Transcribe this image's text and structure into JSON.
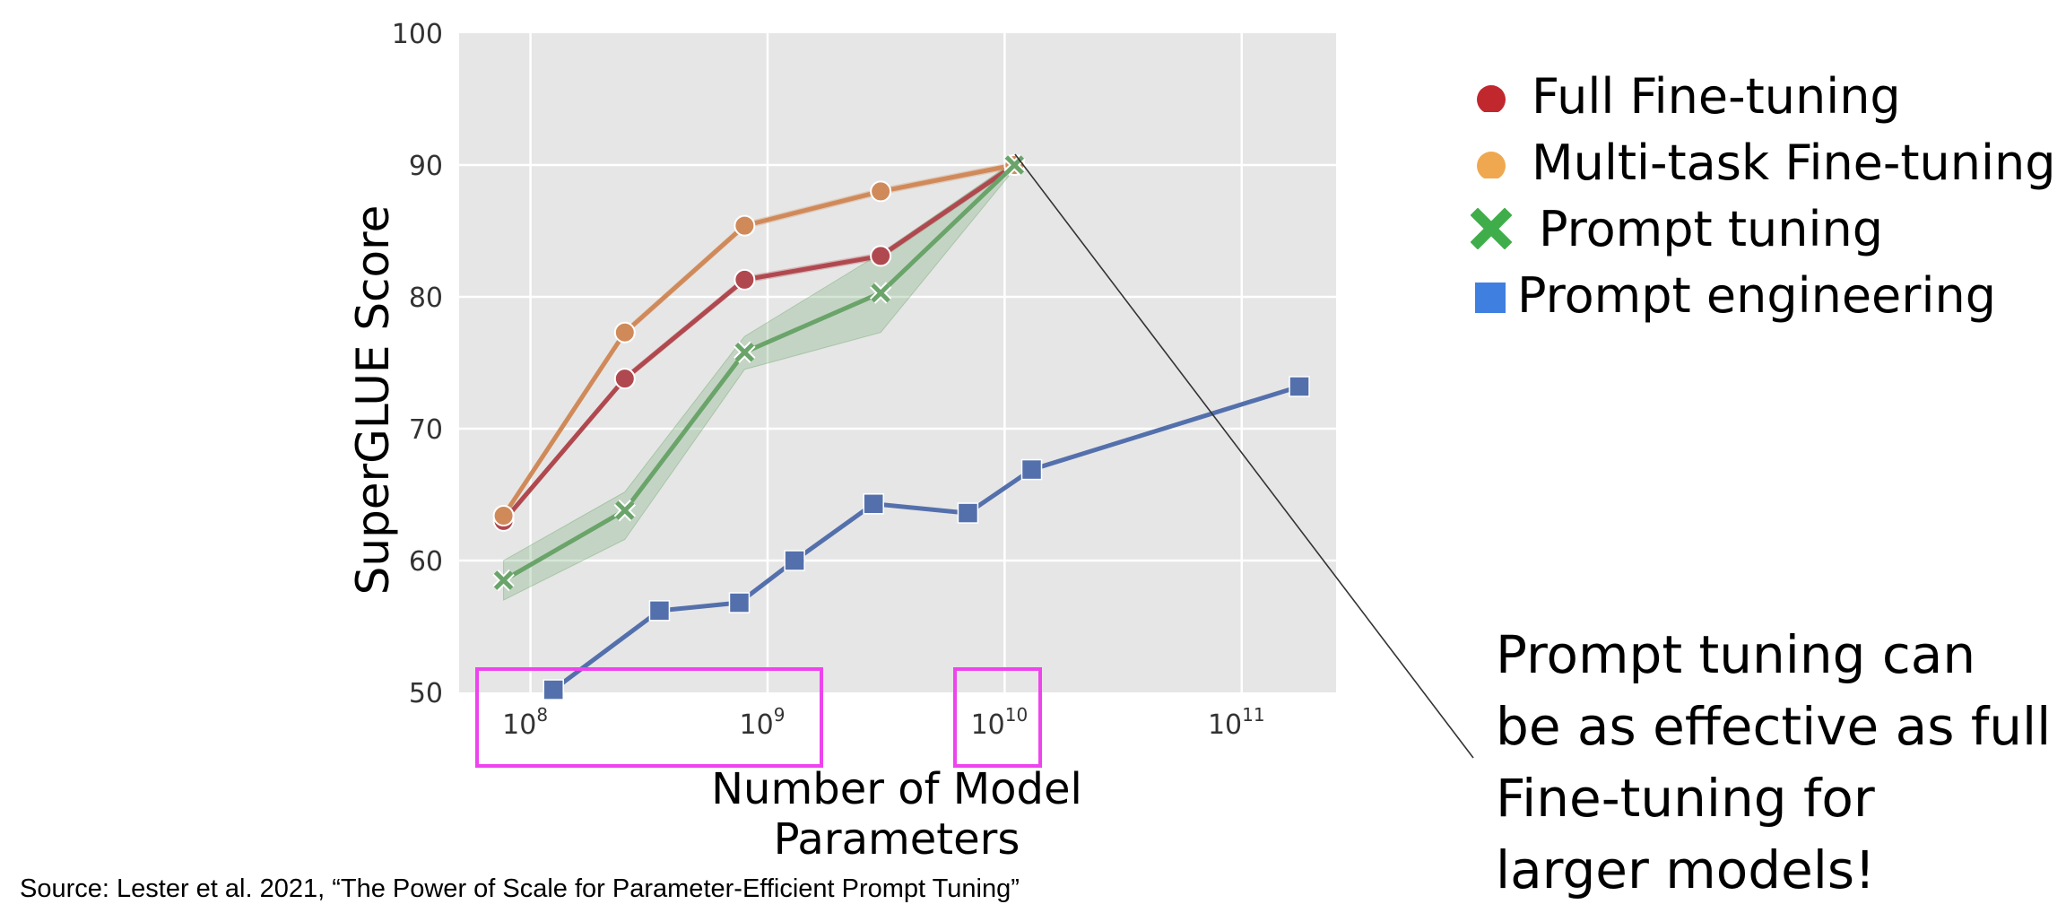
{
  "chart_data": {
    "type": "line",
    "xscale": "log",
    "xlim": [
      50000000,
      250000000000
    ],
    "ylim": [
      50,
      100
    ],
    "xticks": [
      {
        "label": "10",
        "exp": "8",
        "value": 100000000
      },
      {
        "label": "10",
        "exp": "9",
        "value": 1000000000
      },
      {
        "label": "10",
        "exp": "10",
        "value": 10000000000
      },
      {
        "label": "10",
        "exp": "11",
        "value": 100000000000
      }
    ],
    "yticks": [
      50,
      60,
      70,
      80,
      90,
      100
    ],
    "xlabel": "Number of Model Parameters",
    "ylabel": "SuperGLUE Score",
    "grid": true,
    "legend_position": "right",
    "series": [
      {
        "name": "Full Fine-tuning",
        "color": "#b0494f",
        "legend_color": "#c0282d",
        "marker": "circle",
        "x": [
          77000000,
          250000000,
          800000000,
          3000000000,
          11000000000
        ],
        "y": [
          63,
          73.8,
          81.3,
          83.1,
          90
        ]
      },
      {
        "name": "Multi-task Fine-tuning",
        "color": "#d08a5a",
        "legend_color": "#f0a850",
        "marker": "circle",
        "x": [
          77000000,
          250000000,
          800000000,
          3000000000,
          11000000000
        ],
        "y": [
          63.4,
          77.3,
          85.4,
          88,
          90
        ]
      },
      {
        "name": "Prompt tuning",
        "color": "#6aa46a",
        "legend_color": "#3fae4a",
        "marker": "x",
        "x": [
          77000000,
          250000000,
          800000000,
          3000000000,
          11000000000
        ],
        "y": [
          58.5,
          63.8,
          75.8,
          80.3,
          90
        ],
        "band_lo": [
          57,
          61.6,
          74.5,
          77.3,
          89.7
        ],
        "band_hi": [
          60,
          65.2,
          77,
          83.3,
          90.3
        ]
      },
      {
        "name": "Prompt engineering",
        "color": "#5470ac",
        "legend_color": "#3f7fe0",
        "marker": "square",
        "x": [
          125000000,
          350000000,
          760000000,
          1300000000,
          2800000000,
          7000000000,
          13000000000,
          175000000000
        ],
        "y": [
          50.2,
          56.2,
          56.8,
          60,
          64.3,
          63.6,
          66.9,
          73.2
        ]
      }
    ]
  },
  "callout_lines": [
    "Prompt tuning can",
    "be as effective as full",
    "Fine-tuning for",
    "larger models!"
  ],
  "source_text": "Source:  Lester et al. 2021, “The Power of Scale for Parameter-Efficient Prompt Tuning”",
  "highlight_color": "#ee44ee"
}
